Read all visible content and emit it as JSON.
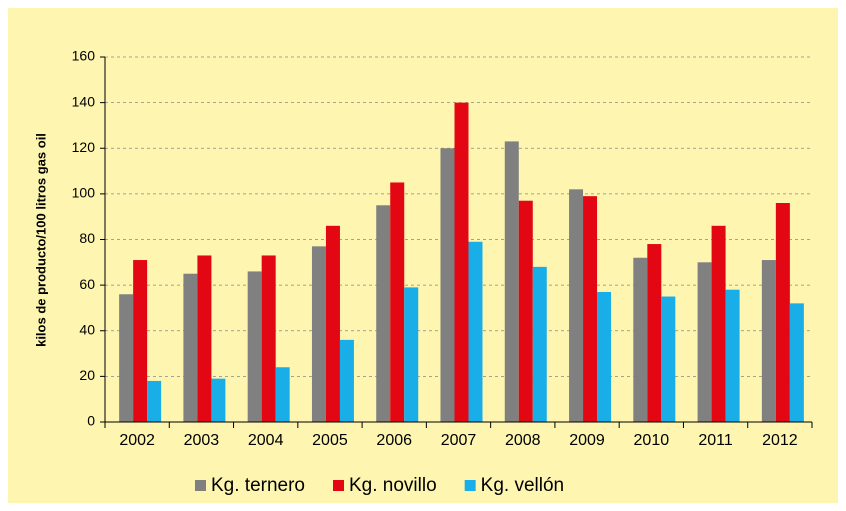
{
  "chart_data": {
    "type": "bar",
    "y_label": "kilos de producto/100 litros gas oil",
    "categories": [
      "2002",
      "2003",
      "2004",
      "2005",
      "2006",
      "2007",
      "2008",
      "2009",
      "2010",
      "2011",
      "2012"
    ],
    "series": [
      {
        "name": "Kg. ternero",
        "color": "#808080",
        "values": [
          56,
          65,
          66,
          77,
          95,
          120,
          123,
          102,
          72,
          70,
          71
        ]
      },
      {
        "name": "Kg. novillo",
        "color": "#e30613",
        "values": [
          71,
          73,
          73,
          86,
          105,
          140,
          97,
          99,
          78,
          86,
          96
        ]
      },
      {
        "name": "Kg. vellón",
        "color": "#19aee8",
        "values": [
          18,
          19,
          24,
          36,
          59,
          79,
          68,
          57,
          55,
          58,
          52
        ]
      }
    ],
    "ylim": [
      0,
      160
    ],
    "yticks": [
      0,
      20,
      40,
      60,
      80,
      100,
      120,
      140,
      160
    ],
    "grid": true
  }
}
